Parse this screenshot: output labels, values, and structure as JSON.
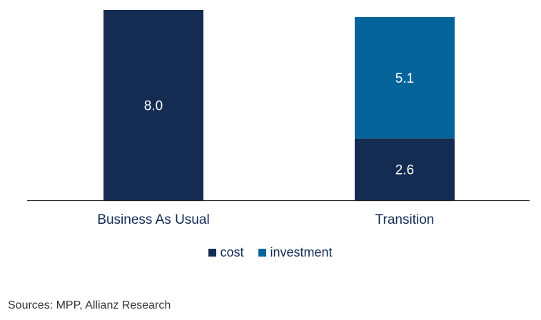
{
  "chart_data": {
    "type": "bar",
    "stacked": true,
    "categories": [
      "Business As Usual",
      "Transition"
    ],
    "series": [
      {
        "name": "cost",
        "values": [
          8.0,
          2.6
        ],
        "color": "#142b52"
      },
      {
        "name": "investment",
        "values": [
          null,
          5.1
        ],
        "color": "#04649a"
      }
    ],
    "data_labels": true,
    "ylim": [
      0,
      8.0
    ],
    "grid": false,
    "legend": "bottom",
    "source": "Sources: MPP, Allianz Research"
  }
}
